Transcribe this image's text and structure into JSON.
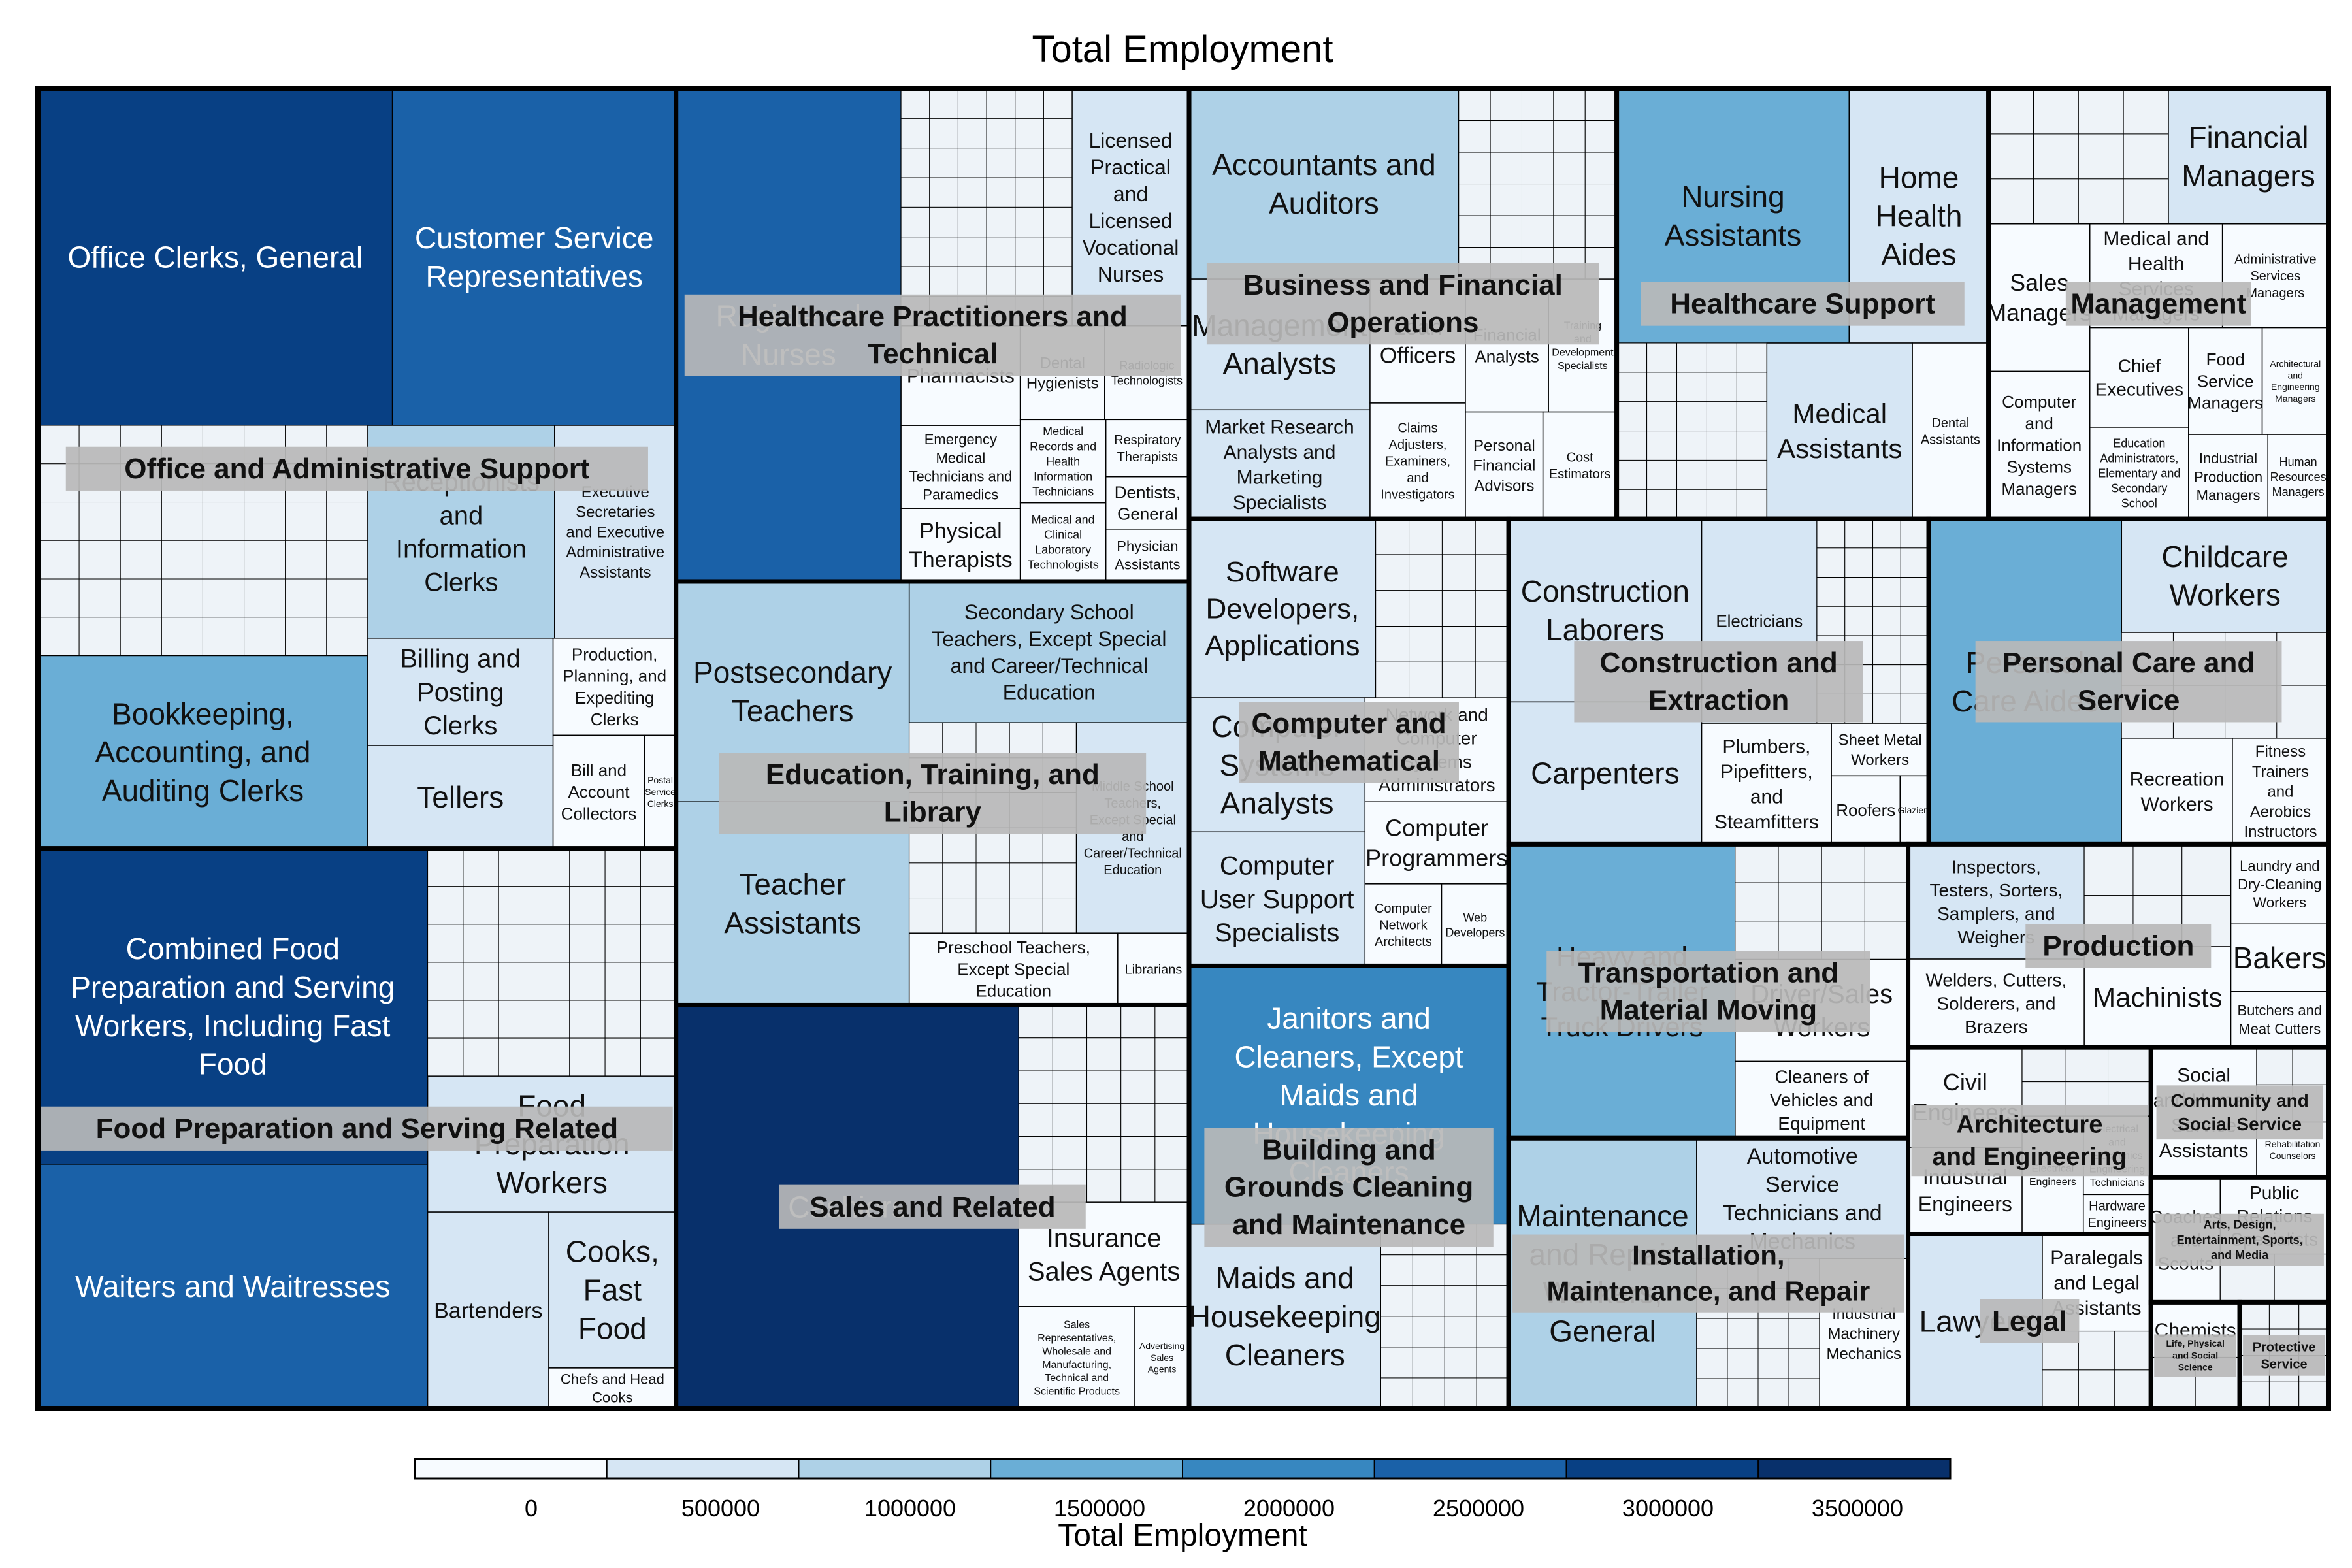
{
  "chart_data": {
    "type": "treemap",
    "title": "Total Employment",
    "colorbar": {
      "label": "Total Employment",
      "ticks": [
        "0",
        "500000",
        "1000000",
        "1500000",
        "2000000",
        "2500000",
        "3000000",
        "3500000"
      ],
      "colors": [
        "#f7fbff",
        "#d6e6f4",
        "#aed1e7",
        "#6aaed6",
        "#3787c0",
        "#1a61a8",
        "#084084",
        "#08306b"
      ]
    },
    "groups": [
      {
        "label": "Office and Administrative Support",
        "items": [
          {
            "label": "Office Clerks, General",
            "value": 3000000
          },
          {
            "label": "Customer Service Representatives",
            "value": 2400000
          },
          {
            "label": "Bookkeeping, Accounting, and Auditing Clerks",
            "value": 1600000
          },
          {
            "label": "Receptionists and Information Clerks",
            "value": 1000000
          },
          {
            "label": "Executive Secretaries and Executive Administrative Assistants",
            "value": 650000
          },
          {
            "label": "Billing and Posting Clerks",
            "value": 500000
          },
          {
            "label": "Bill and Account Collectors",
            "value": 260000
          },
          {
            "label": "Tellers",
            "value": 480000
          },
          {
            "label": "Production, Planning, and Expediting Clerks",
            "value": 300000
          },
          {
            "label": "Postal Service Clerks",
            "value": 90000
          }
        ]
      },
      {
        "label": "Food Preparation and Serving Related",
        "items": [
          {
            "label": "Combined Food Preparation and Serving Workers, Including Fast Food",
            "value": 3100000
          },
          {
            "label": "Waiters and Waitresses",
            "value": 2400000
          },
          {
            "label": "Food Preparation Workers",
            "value": 850000
          },
          {
            "label": "Bartenders",
            "value": 600000
          },
          {
            "label": "Cooks, Fast Food",
            "value": 500000
          },
          {
            "label": "Chefs and Head Cooks",
            "value": 130000
          }
        ]
      },
      {
        "label": "Healthcare Practitioners and Technical",
        "items": [
          {
            "label": "Registered Nurses",
            "value": 2800000
          },
          {
            "label": "Licensed Practical and Licensed Vocational Nurses",
            "value": 700000
          },
          {
            "label": "Pharmacists",
            "value": 300000
          },
          {
            "label": "Emergency Medical Technicians and Paramedics",
            "value": 250000
          },
          {
            "label": "Dental Hygienists",
            "value": 200000
          },
          {
            "label": "Medical Records and Health Information Technicians",
            "value": 180000
          },
          {
            "label": "Medical and Clinical Laboratory Technologists",
            "value": 170000
          },
          {
            "label": "Physical Therapists",
            "value": 220000
          },
          {
            "label": "Dentists, General",
            "value": 110000
          },
          {
            "label": "Physician Assistants",
            "value": 110000
          },
          {
            "label": "Respiratory Therapists",
            "value": 120000
          },
          {
            "label": "Radiologic Technologists",
            "value": 200000
          }
        ]
      },
      {
        "label": "Education, Training, and Library",
        "items": [
          {
            "label": "Postsecondary Teachers",
            "value": 1300000
          },
          {
            "label": "Teacher Assistants",
            "value": 1200000
          },
          {
            "label": "Secondary School Teachers, Except Special and Career/Technical Education",
            "value": 1000000
          },
          {
            "label": "Middle School Teachers, Except Special and Career/Technical Education",
            "value": 600000
          },
          {
            "label": "Preschool Teachers, Except Special Education",
            "value": 380000
          },
          {
            "label": "Librarians",
            "value": 130000
          }
        ]
      },
      {
        "label": "Sales and Related",
        "items": [
          {
            "label": "Cashiers",
            "value": 3500000
          },
          {
            "label": "Insurance Sales Agents",
            "value": 450000
          },
          {
            "label": "Sales Representatives, Wholesale and Manufacturing, Technical and Scientific Products",
            "value": 300000
          },
          {
            "label": "Advertising Sales Agents",
            "value": 140000
          }
        ]
      },
      {
        "label": "Business and Financial Operations",
        "items": [
          {
            "label": "Accountants and Auditors",
            "value": 1300000
          },
          {
            "label": "Loan Officers",
            "value": 300000
          },
          {
            "label": "Claims Adjusters, Examiners, and Investigators",
            "value": 280000
          },
          {
            "label": "Financial Analysts",
            "value": 280000
          },
          {
            "label": "Training and Development Specialists",
            "value": 230000
          },
          {
            "label": "Management Analysts",
            "value": 600000
          },
          {
            "label": "Market Research Analysts and Marketing Specialists",
            "value": 500000
          },
          {
            "label": "Cost Estimators",
            "value": 200000
          },
          {
            "label": "Personal Financial Advisors",
            "value": 210000
          }
        ]
      },
      {
        "label": "Management",
        "items": [
          {
            "label": "Financial Managers",
            "value": 550000
          },
          {
            "label": "Sales Managers",
            "value": 380000
          },
          {
            "label": "Computer and Information Systems Managers",
            "value": 380000
          },
          {
            "label": "Medical and Health Services Managers",
            "value": 350000
          },
          {
            "label": "Administrative Services Managers",
            "value": 280000
          },
          {
            "label": "Industrial Production Managers",
            "value": 170000
          },
          {
            "label": "Chief Executives",
            "value": 250000
          },
          {
            "label": "Food Service Managers",
            "value": 200000
          },
          {
            "label": "Education Administrators, Elementary and Secondary School",
            "value": 230000
          },
          {
            "label": "Architectural and Engineering Managers",
            "value": 180000
          },
          {
            "label": "Human Resources Managers",
            "value": 130000
          }
        ]
      },
      {
        "label": "Healthcare Support",
        "items": [
          {
            "label": "Nursing Assistants",
            "value": 1500000
          },
          {
            "label": "Home Health Aides",
            "value": 900000
          },
          {
            "label": "Medical Assistants",
            "value": 650000
          },
          {
            "label": "Dental Assistants",
            "value": 340000
          }
        ]
      },
      {
        "label": "Construction and Extraction",
        "items": [
          {
            "label": "Construction Laborers",
            "value": 900000
          },
          {
            "label": "Carpenters",
            "value": 700000
          },
          {
            "label": "Electricians",
            "value": 600000
          },
          {
            "label": "Sheet Metal Workers",
            "value": 130000
          },
          {
            "label": "Plumbers, Pipefitters, and Steamfitters",
            "value": 400000
          },
          {
            "label": "Roofers",
            "value": 120000
          },
          {
            "label": "Glaziers",
            "value": 50000
          }
        ]
      },
      {
        "label": "Installation, Maintenance, and Repair",
        "items": [
          {
            "label": "Maintenance and Repair Workers, General",
            "value": 1300000
          },
          {
            "label": "Industrial Machinery Mechanics",
            "value": 340000
          },
          {
            "label": "Automotive Service Technicians and Mechanics",
            "value": 650000
          }
        ]
      },
      {
        "label": "Transportation and Material Moving",
        "items": [
          {
            "label": "Heavy and Tractor-Trailer Truck Drivers",
            "value": 1700000
          },
          {
            "label": "Cleaners of Vehicles and Equipment",
            "value": 340000
          },
          {
            "label": "Driver/Sales Workers",
            "value": 450000
          }
        ]
      },
      {
        "label": "Production",
        "items": [
          {
            "label": "Inspectors, Testers, Sorters, Samplers, and Weighers",
            "value": 520000
          },
          {
            "label": "Machinists",
            "value": 380000
          },
          {
            "label": "Welders, Cutters, Solderers, and Brazers",
            "value": 400000
          },
          {
            "label": "Butchers and Meat Cutters",
            "value": 140000
          },
          {
            "label": "Laundry and Dry-Cleaning Workers",
            "value": 200000
          },
          {
            "label": "Bakers",
            "value": 170000
          }
        ]
      },
      {
        "label": "Building and Grounds Cleaning and Maintenance",
        "items": [
          {
            "label": "Janitors and Cleaners, Except Maids and Housekeeping Cleaners",
            "value": 2100000
          },
          {
            "label": "Maids and Housekeeping Cleaners",
            "value": 900000
          }
        ]
      },
      {
        "label": "Personal Care and Service",
        "items": [
          {
            "label": "Personal Care Aides",
            "value": 1600000
          },
          {
            "label": "Childcare Workers",
            "value": 600000
          },
          {
            "label": "Recreation Workers",
            "value": 300000
          },
          {
            "label": "Fitness Trainers and Aerobics Instructors",
            "value": 260000
          }
        ]
      },
      {
        "label": "Computer and Mathematical",
        "items": [
          {
            "label": "Software Developers, Applications",
            "value": 850000
          },
          {
            "label": "Computer Systems Analysts",
            "value": 600000
          },
          {
            "label": "Network and Computer Systems Administrators",
            "value": 380000
          },
          {
            "label": "Computer User Support Specialists",
            "value": 600000
          },
          {
            "label": "Computer Programmers",
            "value": 300000
          },
          {
            "label": "Computer Network Architects",
            "value": 160000
          },
          {
            "label": "Web Developers",
            "value": 140000
          }
        ]
      },
      {
        "label": "Architecture and Engineering",
        "items": [
          {
            "label": "Civil Engineers",
            "value": 300000
          },
          {
            "label": "Electrical Engineers",
            "value": 190000
          },
          {
            "label": "Electrical and Electronics Engineering Technicians",
            "value": 140000
          },
          {
            "label": "Industrial Engineers",
            "value": 260000
          },
          {
            "label": "Hardware Engineers",
            "value": 70000
          }
        ]
      },
      {
        "label": "Arts, Design, Entertainment, Sports, and Media",
        "items": [
          {
            "label": "Coaches and Scouts",
            "value": 240000
          },
          {
            "label": "Public Relations Specialists",
            "value": 230000
          }
        ]
      },
      {
        "label": "Community and Social Service",
        "items": [
          {
            "label": "Social and Human Service Assistants",
            "value": 380000
          },
          {
            "label": "Rehabilitation Counselors",
            "value": 110000
          }
        ]
      },
      {
        "label": "Legal",
        "items": [
          {
            "label": "Lawyers",
            "value": 620000
          },
          {
            "label": "Paralegals and Legal Assistants",
            "value": 280000
          }
        ]
      },
      {
        "label": "Life, Physical and Social Science",
        "items": [
          {
            "label": "Chemists",
            "value": 80000
          }
        ]
      },
      {
        "label": "Protective Service",
        "items": []
      }
    ]
  }
}
